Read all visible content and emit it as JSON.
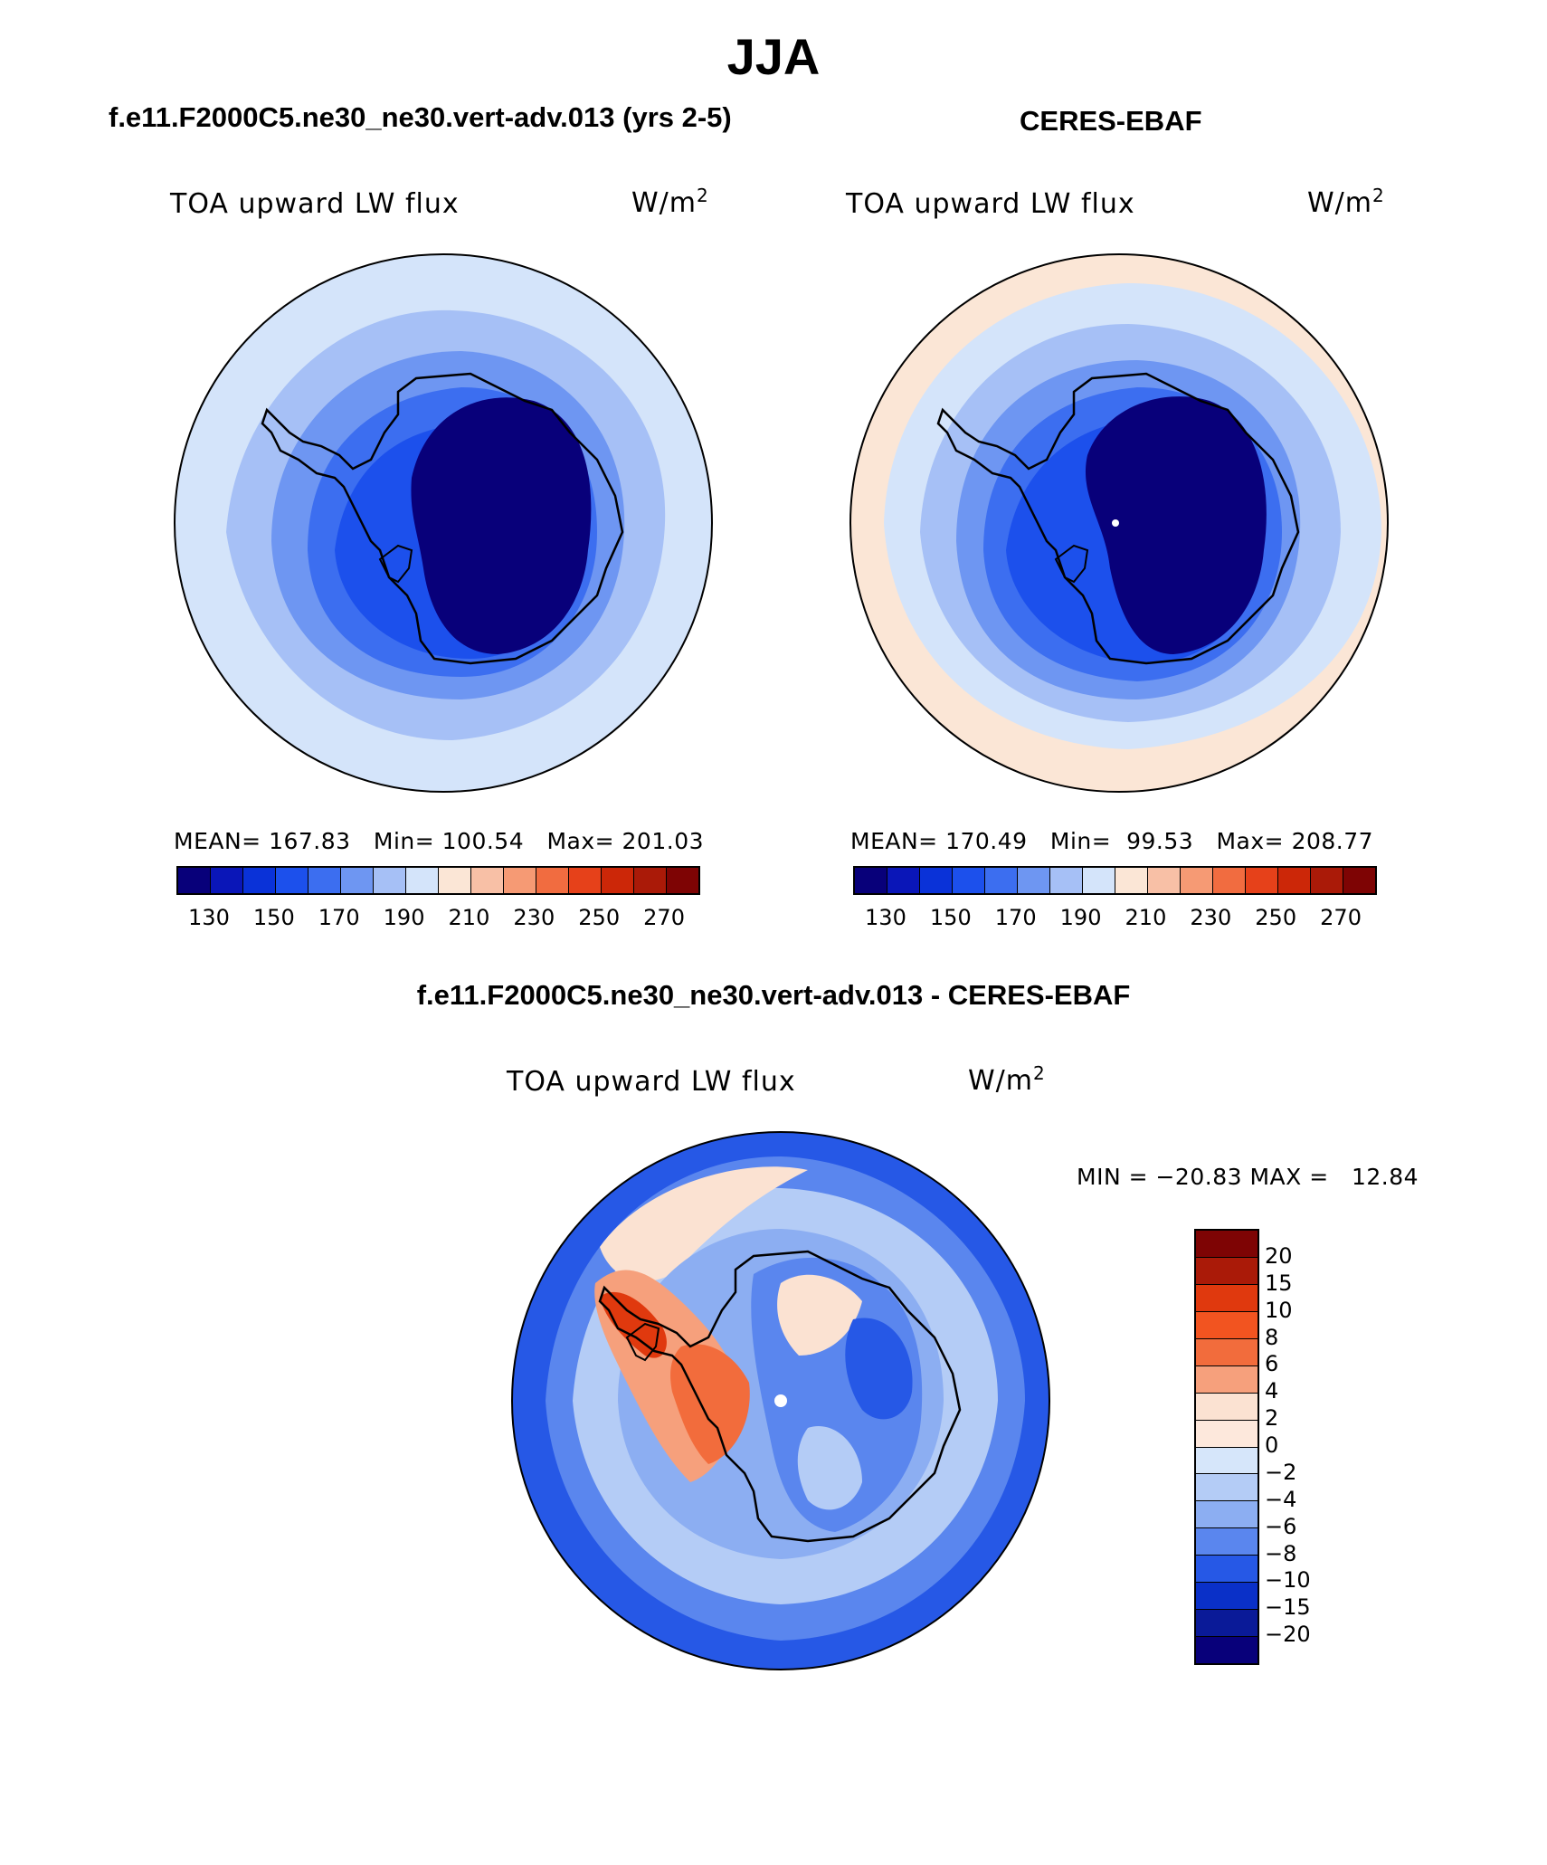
{
  "title": "JJA",
  "panel_left": {
    "subtitle": "f.e11.F2000C5.ne30_ne30.vert-adv.013 (yrs 2-5)",
    "variable": "TOA upward LW flux",
    "unit": "W/m",
    "unit_sup": "2",
    "stats": "MEAN= 167.83   Min= 100.54   Max= 201.03"
  },
  "panel_right": {
    "subtitle": "CERES-EBAF",
    "variable": "TOA upward LW flux",
    "unit": "W/m",
    "unit_sup": "2",
    "stats": "MEAN= 170.49   Min=  99.53   Max= 208.77"
  },
  "panel_diff": {
    "subtitle": "f.e11.F2000C5.ne30_ne30.vert-adv.013 - CERES-EBAF",
    "variable": "TOA upward LW flux",
    "unit": "W/m",
    "unit_sup": "2",
    "minmax": "MIN = −20.83 MAX =   12.84"
  },
  "colorbar_abs": {
    "ticks": [
      "130",
      "150",
      "170",
      "190",
      "210",
      "230",
      "250",
      "270"
    ],
    "colors": [
      "#08007a",
      "#0a16b8",
      "#0a32d8",
      "#1c50ec",
      "#3c6ef0",
      "#6e96f2",
      "#a6c0f6",
      "#d4e4fa",
      "#fbe6d6",
      "#f8c0a6",
      "#f69a74",
      "#f16c40",
      "#e6411a",
      "#cc2708",
      "#aa1a08",
      "#7e0404"
    ]
  },
  "colorbar_diff": {
    "ticks": [
      "20",
      "15",
      "10",
      "8",
      "6",
      "4",
      "2",
      "0",
      "−2",
      "−4",
      "−6",
      "−8",
      "−10",
      "−15",
      "−20"
    ],
    "colors": [
      "#7e0404",
      "#aa1a08",
      "#e0390e",
      "#f25420",
      "#f26c3c",
      "#f6a07c",
      "#fbe2d2",
      "#fde8dc",
      "#d6e6fa",
      "#b4ccf6",
      "#8caef2",
      "#5a86ee",
      "#2658e6",
      "#0a30c8",
      "#0a1a98",
      "#08007a"
    ]
  },
  "map_colors": {
    "ocean_far": "#d4e4fa",
    "ring_light": "#a6c0f6",
    "ring_mid": "#6e96f2",
    "ring_deep": "#3c6ef0",
    "ring_deeper": "#1c50ec",
    "core": "#08007a",
    "warm_edge": "#fbe6d6",
    "diff_pos": "#f26c3c",
    "diff_pos_strong": "#e0390e",
    "diff_neg": "#2658e6",
    "diff_neg_light": "#8caef2"
  }
}
